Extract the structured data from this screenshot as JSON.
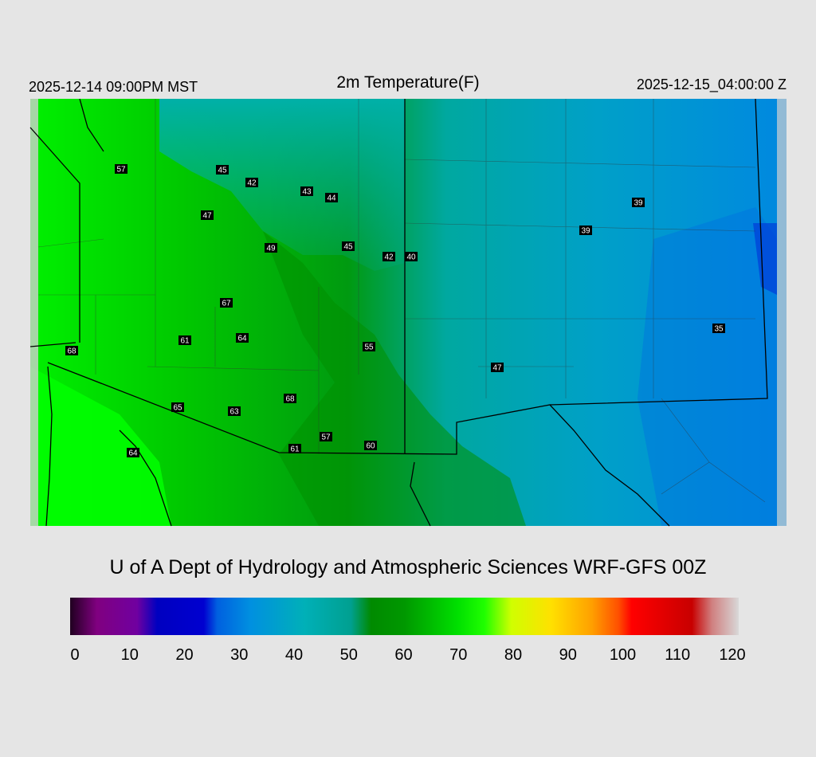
{
  "header": {
    "left": "2025-12-14 09:00PM MST",
    "title": "2m Temperature(F)",
    "right": "2025-12-15_04:00:00 Z"
  },
  "stations": [
    57,
    45,
    42,
    43,
    44,
    47,
    49,
    45,
    42,
    40,
    39,
    39,
    67,
    61,
    64,
    55,
    68,
    47,
    35,
    65,
    63,
    68,
    57,
    60,
    61,
    64
  ],
  "credit": "U of A Dept of Hydrology and Atmospheric Sciences WRF-GFS 00Z",
  "colorbar": {
    "range": [
      0,
      120
    ],
    "ticks": [
      0,
      10,
      20,
      30,
      40,
      50,
      60,
      70,
      80,
      90,
      100,
      110,
      120
    ]
  }
}
